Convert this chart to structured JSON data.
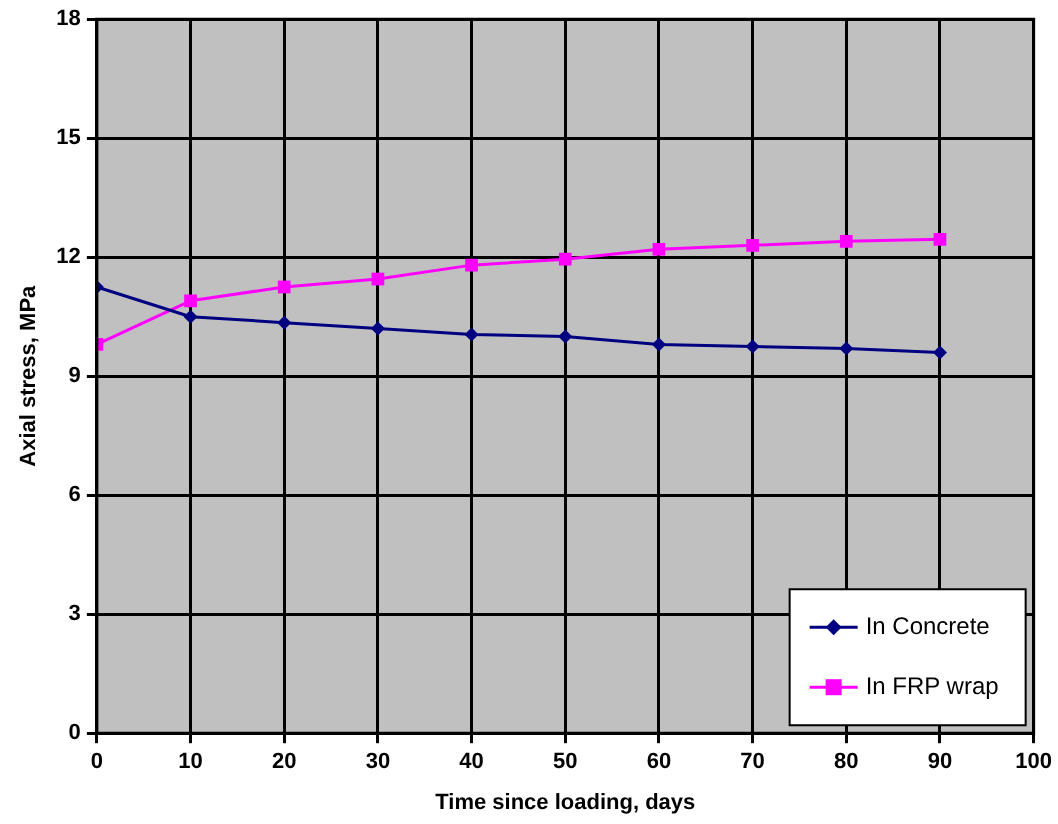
{
  "chart_data": {
    "type": "line",
    "xlabel": "Time since loading, days",
    "ylabel": "Axial stress, MPa",
    "x": [
      0,
      10,
      20,
      30,
      40,
      50,
      60,
      70,
      80,
      90
    ],
    "series": [
      {
        "name": "In Concrete",
        "color": "#000080",
        "marker": "diamond",
        "values": [
          11.25,
          10.5,
          10.35,
          10.2,
          10.05,
          10.0,
          9.8,
          9.75,
          9.7,
          9.6
        ]
      },
      {
        "name": "In FRP wrap",
        "color": "#ff00ff",
        "marker": "square",
        "values": [
          9.8,
          10.9,
          11.25,
          11.45,
          11.8,
          11.95,
          12.2,
          12.3,
          12.4,
          12.45
        ]
      }
    ],
    "xlim": [
      0,
      100
    ],
    "xticks": [
      0,
      10,
      20,
      30,
      40,
      50,
      60,
      70,
      80,
      90,
      100
    ],
    "ylim": [
      0,
      18
    ],
    "yticks": [
      0,
      3,
      6,
      9,
      12,
      15,
      18
    ],
    "grid": true,
    "legend": "bottom right",
    "line_style": "solid"
  }
}
